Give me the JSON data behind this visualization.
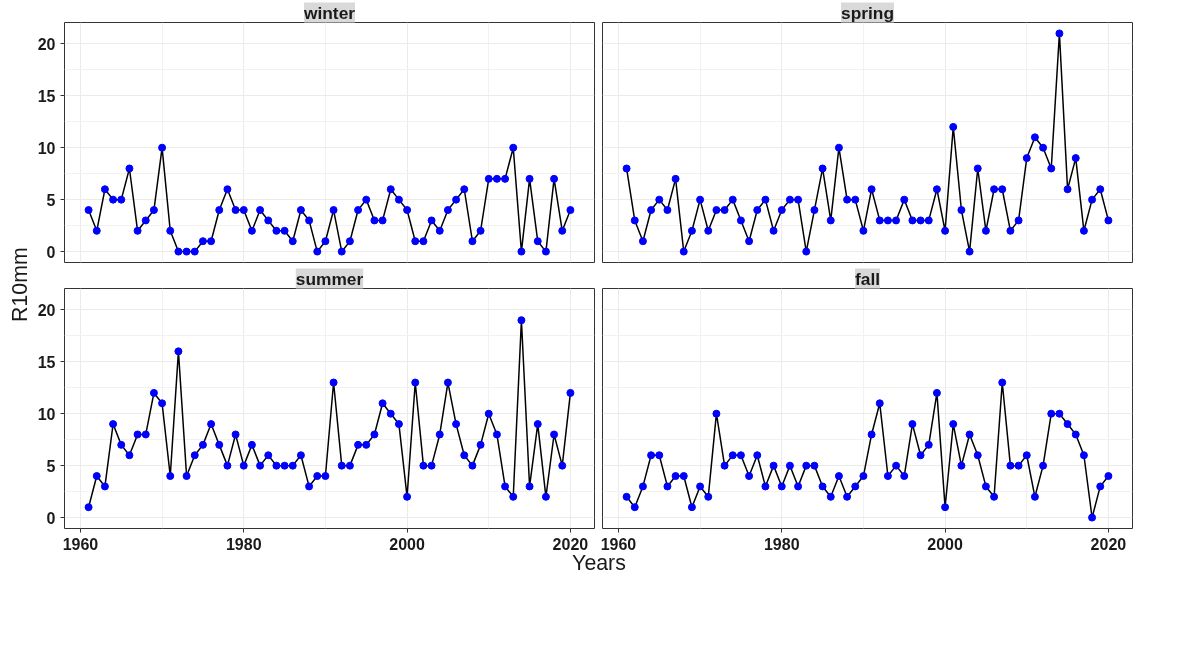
{
  "chart_data": [
    {
      "type": "line",
      "title": "winter",
      "ylabel": "R10mm",
      "x": [
        1961,
        1962,
        1963,
        1964,
        1965,
        1966,
        1967,
        1968,
        1969,
        1970,
        1971,
        1972,
        1973,
        1974,
        1975,
        1976,
        1977,
        1978,
        1979,
        1980,
        1981,
        1982,
        1983,
        1984,
        1985,
        1986,
        1987,
        1988,
        1989,
        1990,
        1991,
        1992,
        1993,
        1994,
        1995,
        1996,
        1997,
        1998,
        1999,
        2000,
        2001,
        2002,
        2003,
        2004,
        2005,
        2006,
        2007,
        2008,
        2009,
        2010,
        2011,
        2012,
        2013,
        2014,
        2015,
        2016,
        2017,
        2018,
        2019,
        2020
      ],
      "series": [
        {
          "color": "#0000ff",
          "values": [
            4,
            2,
            6,
            5,
            5,
            8,
            2,
            3,
            4,
            10,
            2,
            0,
            0,
            0,
            1,
            1,
            4,
            6,
            4,
            4,
            2,
            4,
            3,
            2,
            2,
            1,
            4,
            3,
            0,
            1,
            4,
            0,
            1,
            4,
            5,
            3,
            3,
            6,
            5,
            4,
            1,
            1,
            3,
            2,
            4,
            5,
            6,
            1,
            2,
            7,
            7,
            7,
            10,
            0,
            7,
            1,
            0,
            7,
            2,
            4
          ]
        }
      ],
      "xlim": [
        1958.05,
        2022.95
      ],
      "ylim": [
        -1.05,
        22.05
      ],
      "xticks": [
        1960,
        1980,
        2000,
        2020
      ],
      "yticks": [
        0,
        5,
        10,
        15,
        20
      ],
      "tick_labels": "y",
      "grid": true,
      "marker": "circle",
      "line_style": "solid"
    },
    {
      "type": "line",
      "title": "spring",
      "x": [
        1961,
        1962,
        1963,
        1964,
        1965,
        1966,
        1967,
        1968,
        1969,
        1970,
        1971,
        1972,
        1973,
        1974,
        1975,
        1976,
        1977,
        1978,
        1979,
        1980,
        1981,
        1982,
        1983,
        1984,
        1985,
        1986,
        1987,
        1988,
        1989,
        1990,
        1991,
        1992,
        1993,
        1994,
        1995,
        1996,
        1997,
        1998,
        1999,
        2000,
        2001,
        2002,
        2003,
        2004,
        2005,
        2006,
        2007,
        2008,
        2009,
        2010,
        2011,
        2012,
        2013,
        2014,
        2015,
        2016,
        2017,
        2018,
        2019,
        2020
      ],
      "series": [
        {
          "color": "#0000ff",
          "values": [
            8,
            3,
            1,
            4,
            5,
            4,
            7,
            0,
            2,
            5,
            2,
            4,
            4,
            5,
            3,
            1,
            4,
            5,
            2,
            4,
            5,
            5,
            0,
            4,
            8,
            3,
            10,
            5,
            5,
            2,
            6,
            3,
            3,
            3,
            5,
            3,
            3,
            3,
            6,
            2,
            12,
            4,
            0,
            8,
            2,
            6,
            6,
            2,
            3,
            9,
            11,
            10,
            8,
            21,
            6,
            9,
            2,
            5,
            6,
            3
          ]
        }
      ],
      "xlim": [
        1958.05,
        2022.95
      ],
      "ylim": [
        -1.05,
        22.05
      ],
      "xticks": [
        1960,
        1980,
        2000,
        2020
      ],
      "yticks": [
        0,
        5,
        10,
        15,
        20
      ],
      "tick_labels": false,
      "grid": true,
      "marker": "circle",
      "line_style": "solid"
    },
    {
      "type": "line",
      "title": "summer",
      "xlabel": "Years",
      "x": [
        1961,
        1962,
        1963,
        1964,
        1965,
        1966,
        1967,
        1968,
        1969,
        1970,
        1971,
        1972,
        1973,
        1974,
        1975,
        1976,
        1977,
        1978,
        1979,
        1980,
        1981,
        1982,
        1983,
        1984,
        1985,
        1986,
        1987,
        1988,
        1989,
        1990,
        1991,
        1992,
        1993,
        1994,
        1995,
        1996,
        1997,
        1998,
        1999,
        2000,
        2001,
        2002,
        2003,
        2004,
        2005,
        2006,
        2007,
        2008,
        2009,
        2010,
        2011,
        2012,
        2013,
        2014,
        2015,
        2016,
        2017,
        2018,
        2019,
        2020
      ],
      "series": [
        {
          "color": "#0000ff",
          "values": [
            1,
            4,
            3,
            9,
            7,
            6,
            8,
            8,
            12,
            11,
            4,
            16,
            4,
            6,
            7,
            9,
            7,
            5,
            8,
            5,
            7,
            5,
            6,
            5,
            5,
            5,
            6,
            3,
            4,
            4,
            13,
            5,
            5,
            7,
            7,
            8,
            11,
            10,
            9,
            2,
            13,
            5,
            5,
            8,
            13,
            9,
            6,
            5,
            7,
            10,
            8,
            3,
            2,
            19,
            3,
            9,
            2,
            8,
            5,
            12
          ]
        }
      ],
      "xlim": [
        1958.05,
        2022.95
      ],
      "ylim": [
        -1.05,
        22.05
      ],
      "xticks": [
        1960,
        1980,
        2000,
        2020
      ],
      "yticks": [
        0,
        5,
        10,
        15,
        20
      ],
      "grid": true,
      "marker": "circle",
      "line_style": "solid"
    },
    {
      "type": "line",
      "title": "fall",
      "x": [
        1961,
        1962,
        1963,
        1964,
        1965,
        1966,
        1967,
        1968,
        1969,
        1970,
        1971,
        1972,
        1973,
        1974,
        1975,
        1976,
        1977,
        1978,
        1979,
        1980,
        1981,
        1982,
        1983,
        1984,
        1985,
        1986,
        1987,
        1988,
        1989,
        1990,
        1991,
        1992,
        1993,
        1994,
        1995,
        1996,
        1997,
        1998,
        1999,
        2000,
        2001,
        2002,
        2003,
        2004,
        2005,
        2006,
        2007,
        2008,
        2009,
        2010,
        2011,
        2012,
        2013,
        2014,
        2015,
        2016,
        2017,
        2018,
        2019,
        2020
      ],
      "series": [
        {
          "color": "#0000ff",
          "values": [
            2,
            1,
            3,
            6,
            6,
            3,
            4,
            4,
            1,
            3,
            2,
            10,
            5,
            6,
            6,
            4,
            6,
            3,
            5,
            3,
            5,
            3,
            5,
            5,
            3,
            2,
            4,
            2,
            3,
            4,
            8,
            11,
            4,
            5,
            4,
            9,
            6,
            7,
            12,
            1,
            9,
            5,
            8,
            6,
            3,
            2,
            13,
            5,
            5,
            6,
            2,
            5,
            10,
            10,
            9,
            8,
            6,
            0,
            3,
            4
          ]
        }
      ],
      "xlim": [
        1958.05,
        2022.95
      ],
      "ylim": [
        -1.05,
        22.05
      ],
      "xticks": [
        1960,
        1980,
        2000,
        2020
      ],
      "yticks": [
        0,
        5,
        10,
        15,
        20
      ],
      "tick_labels": "x",
      "grid": true,
      "marker": "circle",
      "line_style": "solid"
    }
  ]
}
